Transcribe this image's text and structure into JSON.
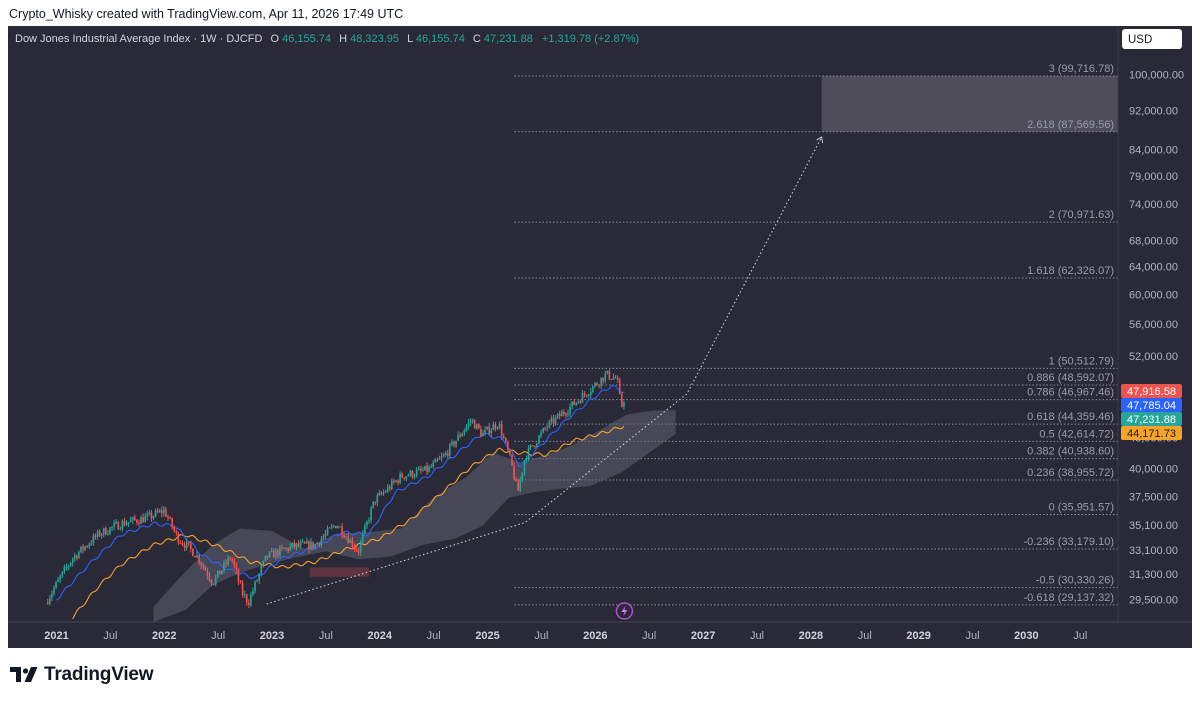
{
  "credit": "Crypto_Whisky created with TradingView.com, Apr 11, 2026 17:49 UTC",
  "logo_text": "TradingView",
  "colors": {
    "background": "#2a2938",
    "candle_up": "#26a69a",
    "candle_down": "#ef5350",
    "fast_ma": "#2962ff",
    "slow_ma": "#f59f2c",
    "cloud": "#5d6373",
    "fib": "#8a8b99",
    "target_box": "#4e4d59",
    "label_red": "#ef5350",
    "label_blue": "#2962ff",
    "label_green": "#26a69a",
    "label_orange": "#f7a325"
  },
  "chart_data": {
    "type": "candlestick",
    "legend": {
      "symbol": "Dow Jones Industrial Average Index · 1W · DJCFD",
      "o_label": "O",
      "o_value": "46,155.74",
      "h_label": "H",
      "h_value": "48,323.95",
      "l_label": "L",
      "l_value": "46,155.74",
      "c_label": "C",
      "c_value": "47,231.88",
      "change": "+1,319.78 (+2.87%)"
    },
    "currency": "USD",
    "x_ticks": [
      {
        "t": 2021.0,
        "label": "2021",
        "bold": true
      },
      {
        "t": 2021.5,
        "label": "Jul",
        "bold": false
      },
      {
        "t": 2022.0,
        "label": "2022",
        "bold": true
      },
      {
        "t": 2022.5,
        "label": "Jul",
        "bold": false
      },
      {
        "t": 2023.0,
        "label": "2023",
        "bold": true
      },
      {
        "t": 2023.5,
        "label": "Jul",
        "bold": false
      },
      {
        "t": 2024.0,
        "label": "2024",
        "bold": true
      },
      {
        "t": 2024.5,
        "label": "Jul",
        "bold": false
      },
      {
        "t": 2025.0,
        "label": "2025",
        "bold": true
      },
      {
        "t": 2025.5,
        "label": "Jul",
        "bold": false
      },
      {
        "t": 2026.0,
        "label": "2026",
        "bold": true
      },
      {
        "t": 2026.5,
        "label": "Jul",
        "bold": false
      },
      {
        "t": 2027.0,
        "label": "2027",
        "bold": true
      },
      {
        "t": 2027.5,
        "label": "Jul",
        "bold": false
      },
      {
        "t": 2028.0,
        "label": "2028",
        "bold": true
      },
      {
        "t": 2028.5,
        "label": "Jul",
        "bold": false
      },
      {
        "t": 2029.0,
        "label": "2029",
        "bold": true
      },
      {
        "t": 2029.5,
        "label": "Jul",
        "bold": false
      },
      {
        "t": 2030.0,
        "label": "2030",
        "bold": true
      },
      {
        "t": 2030.5,
        "label": "Jul",
        "bold": false
      }
    ],
    "y_ticks": [
      {
        "v": 100000,
        "label": "100,000.00"
      },
      {
        "v": 92000,
        "label": "92,000.00"
      },
      {
        "v": 84000,
        "label": "84,000.00"
      },
      {
        "v": 79000,
        "label": "79,000.00"
      },
      {
        "v": 74000,
        "label": "74,000.00"
      },
      {
        "v": 68000,
        "label": "68,000.00"
      },
      {
        "v": 64000,
        "label": "64,000.00"
      },
      {
        "v": 60000,
        "label": "60,000.00"
      },
      {
        "v": 56000,
        "label": "56,000.00"
      },
      {
        "v": 52000,
        "label": "52,000.00"
      },
      {
        "v": 46000,
        "label": "46,000.00"
      },
      {
        "v": 43000,
        "label": "43,000.00"
      },
      {
        "v": 40000,
        "label": "40,000.00"
      },
      {
        "v": 37500,
        "label": "37,500.00"
      },
      {
        "v": 35100,
        "label": "35,100.00"
      },
      {
        "v": 33100,
        "label": "33,100.00"
      },
      {
        "v": 31300,
        "label": "31,300.00"
      },
      {
        "v": 29500,
        "label": "29,500.00"
      }
    ],
    "y_scale": "log",
    "y_range": [
      28000,
      112000
    ],
    "x_range": [
      2020.55,
      2030.85
    ],
    "fib_start": 2025.25,
    "fib_levels": [
      {
        "v": 99716.78,
        "label": "3 (99,716.78)"
      },
      {
        "v": 87569.56,
        "label": "2.618 (87,569.56)"
      },
      {
        "v": 70971.63,
        "label": "2 (70,971.63)"
      },
      {
        "v": 62326.07,
        "label": "1.618 (62,326.07)"
      },
      {
        "v": 50512.79,
        "label": "1 (50,512.79)"
      },
      {
        "v": 48592.07,
        "label": "0.886 (48,592.07)"
      },
      {
        "v": 46967.46,
        "label": "0.786 (46,967.46)"
      },
      {
        "v": 44359.46,
        "label": "0.618 (44,359.46)"
      },
      {
        "v": 42614.72,
        "label": "0.5 (42,614.72)"
      },
      {
        "v": 40938.6,
        "label": "0.382 (40,938.60)"
      },
      {
        "v": 38955.72,
        "label": "0.236 (38,955.72)"
      },
      {
        "v": 35951.57,
        "label": "0 (35,951.57)"
      },
      {
        "v": 33179.1,
        "label": "-0.236 (33,179.10)"
      },
      {
        "v": 30330.26,
        "label": "-0.5 (30,330.26)"
      },
      {
        "v": 29137.32,
        "label": "-0.618 (29,137.32)"
      }
    ],
    "target_zone": {
      "x0": 2028.1,
      "x1": 2030.85,
      "y0": 87569.56,
      "y1": 99716.78
    },
    "projection_path": [
      {
        "t": 2022.95,
        "v": 29200
      },
      {
        "t": 2025.35,
        "v": 35300
      },
      {
        "t": 2026.85,
        "v": 47600
      },
      {
        "t": 2028.1,
        "v": 86500
      }
    ],
    "price_labels": [
      {
        "v": 47916.58,
        "label": "47,916.58",
        "color": "#ef5350"
      },
      {
        "v": 47785.04,
        "label": "47,785.04",
        "color": "#2962ff"
      },
      {
        "v": 47231.88,
        "label": "47,231.88",
        "color": "#26a69a"
      },
      {
        "v": 44171.73,
        "label": "44,171.73",
        "color": "#f7a325"
      }
    ],
    "price_anchors": [
      [
        2020.9,
        29300
      ],
      [
        2021.15,
        32500
      ],
      [
        2021.4,
        34400
      ],
      [
        2021.6,
        35200
      ],
      [
        2021.85,
        35700
      ],
      [
        2022.0,
        36300
      ],
      [
        2022.12,
        34100
      ],
      [
        2022.3,
        32700
      ],
      [
        2022.45,
        30700
      ],
      [
        2022.62,
        32600
      ],
      [
        2022.72,
        30000
      ],
      [
        2022.78,
        29300
      ],
      [
        2022.95,
        32600
      ],
      [
        2023.2,
        33400
      ],
      [
        2023.4,
        33500
      ],
      [
        2023.6,
        35200
      ],
      [
        2023.8,
        33000
      ],
      [
        2023.95,
        37100
      ],
      [
        2024.2,
        39300
      ],
      [
        2024.45,
        39900
      ],
      [
        2024.6,
        41200
      ],
      [
        2024.85,
        44800
      ],
      [
        2024.95,
        43300
      ],
      [
        2025.1,
        44500
      ],
      [
        2025.22,
        40500
      ],
      [
        2025.28,
        37800
      ],
      [
        2025.35,
        41200
      ],
      [
        2025.55,
        44100
      ],
      [
        2025.8,
        46500
      ],
      [
        2025.98,
        48400
      ],
      [
        2026.1,
        49800
      ],
      [
        2026.2,
        49300
      ],
      [
        2026.24,
        46100
      ],
      [
        2026.27,
        47231.88
      ]
    ],
    "fast_ma_anchors": [
      [
        2021.0,
        29500
      ],
      [
        2021.3,
        32000
      ],
      [
        2021.6,
        34300
      ],
      [
        2021.9,
        35200
      ],
      [
        2022.1,
        35000
      ],
      [
        2022.35,
        32700
      ],
      [
        2022.6,
        31600
      ],
      [
        2022.85,
        31000
      ],
      [
        2023.1,
        32500
      ],
      [
        2023.4,
        33300
      ],
      [
        2023.65,
        34500
      ],
      [
        2023.9,
        34300
      ],
      [
        2024.15,
        37900
      ],
      [
        2024.45,
        39300
      ],
      [
        2024.7,
        41300
      ],
      [
        2024.95,
        43400
      ],
      [
        2025.15,
        42800
      ],
      [
        2025.3,
        40200
      ],
      [
        2025.5,
        42300
      ],
      [
        2025.75,
        45000
      ],
      [
        2026.0,
        47300
      ],
      [
        2026.15,
        48500
      ],
      [
        2026.27,
        47785.04
      ]
    ],
    "slow_ma_anchors": [
      [
        2021.15,
        28300
      ],
      [
        2021.4,
        30500
      ],
      [
        2021.6,
        32000
      ],
      [
        2021.9,
        33500
      ],
      [
        2022.2,
        34300
      ],
      [
        2022.5,
        33400
      ],
      [
        2022.8,
        32200
      ],
      [
        2023.1,
        31800
      ],
      [
        2023.4,
        32200
      ],
      [
        2023.7,
        33200
      ],
      [
        2024.0,
        34000
      ],
      [
        2024.3,
        35600
      ],
      [
        2024.6,
        38000
      ],
      [
        2024.85,
        40200
      ],
      [
        2025.1,
        41800
      ],
      [
        2025.3,
        41500
      ],
      [
        2025.55,
        41300
      ],
      [
        2025.8,
        42700
      ],
      [
        2026.05,
        43400
      ],
      [
        2026.27,
        44171.73
      ]
    ],
    "cloud_top_anchors": [
      [
        2021.9,
        29000
      ],
      [
        2022.2,
        31500
      ],
      [
        2022.45,
        33500
      ],
      [
        2022.7,
        34800
      ],
      [
        2023.0,
        34600
      ],
      [
        2023.3,
        33200
      ],
      [
        2023.6,
        34400
      ],
      [
        2023.9,
        34500
      ],
      [
        2024.2,
        34800
      ],
      [
        2024.5,
        37400
      ],
      [
        2024.8,
        39200
      ],
      [
        2025.05,
        41500
      ],
      [
        2025.3,
        40600
      ],
      [
        2025.55,
        41300
      ],
      [
        2025.8,
        42300
      ],
      [
        2026.05,
        43800
      ],
      [
        2026.3,
        45400
      ],
      [
        2026.55,
        45800
      ],
      [
        2026.75,
        45800
      ]
    ],
    "cloud_bottom_anchors": [
      [
        2021.9,
        28000
      ],
      [
        2022.2,
        28800
      ],
      [
        2022.45,
        30500
      ],
      [
        2022.7,
        31400
      ],
      [
        2022.95,
        32000
      ],
      [
        2023.2,
        32500
      ],
      [
        2023.5,
        33000
      ],
      [
        2023.8,
        32400
      ],
      [
        2024.1,
        32600
      ],
      [
        2024.4,
        33500
      ],
      [
        2024.7,
        34000
      ],
      [
        2024.95,
        35000
      ],
      [
        2025.2,
        37400
      ],
      [
        2025.45,
        37900
      ],
      [
        2025.7,
        38200
      ],
      [
        2025.95,
        38400
      ],
      [
        2026.25,
        39700
      ],
      [
        2026.5,
        41500
      ],
      [
        2026.75,
        43400
      ]
    ]
  }
}
